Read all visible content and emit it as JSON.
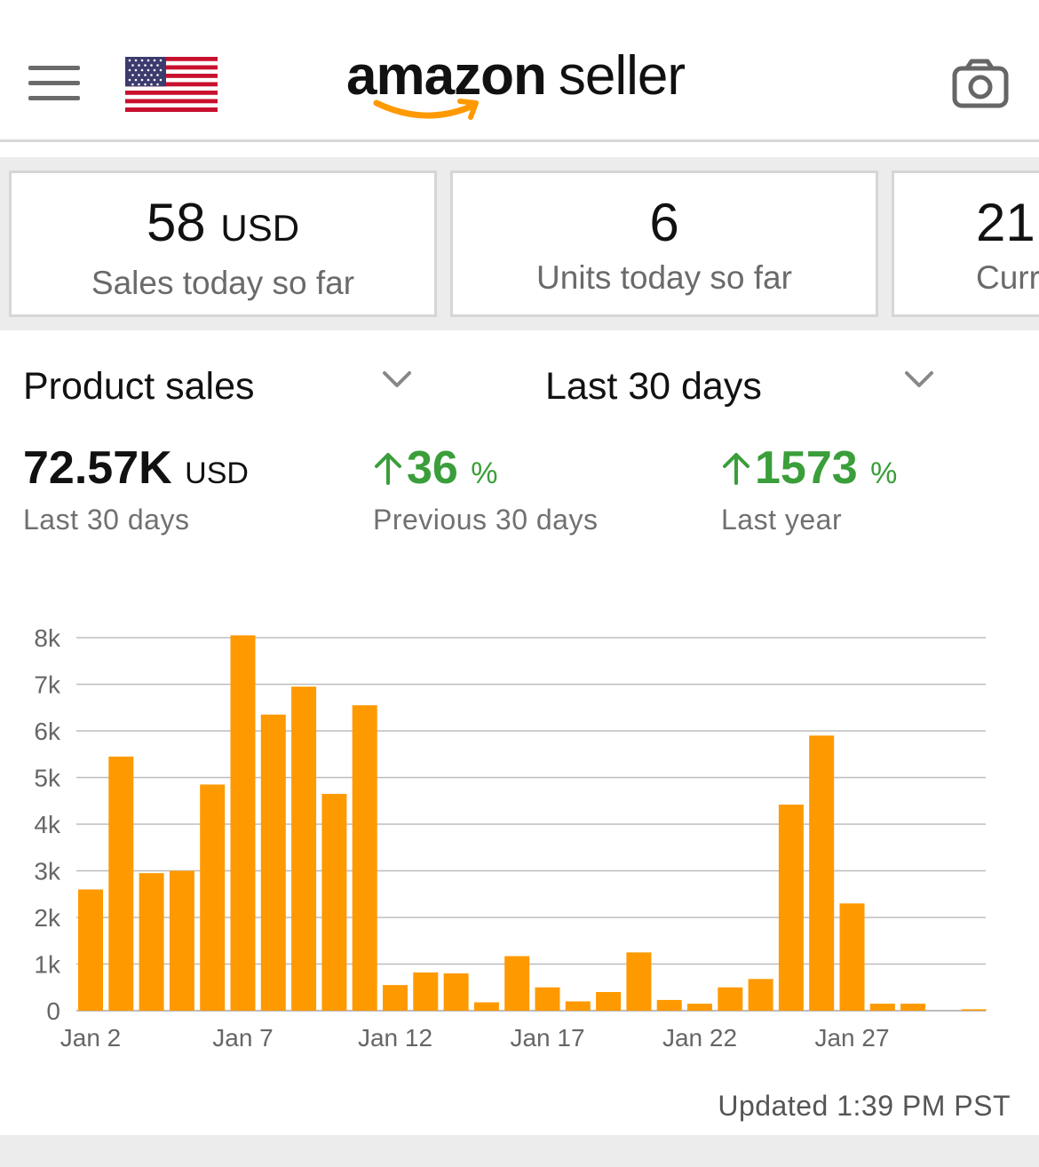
{
  "header": {
    "logo_bold": "amazon",
    "logo_light": "seller",
    "icons": {
      "menu": "hamburger-menu-icon",
      "flag": "us-flag-icon",
      "camera": "camera-icon"
    }
  },
  "kpis": [
    {
      "value": "58",
      "unit": "USD",
      "label": "Sales today so far"
    },
    {
      "value": "6",
      "unit": "",
      "label": "Units today so far"
    },
    {
      "value": "21.",
      "unit": "",
      "label": "Curr"
    }
  ],
  "selectors": {
    "metric": "Product sales",
    "range": "Last 30 days"
  },
  "stats": {
    "total": {
      "value": "72.57K",
      "unit": "USD",
      "label": "Last 30 days"
    },
    "prev": {
      "value": "36",
      "unit": "%",
      "label": "Previous 30 days",
      "direction": "up"
    },
    "year": {
      "value": "1573",
      "unit": "%",
      "label": "Last year",
      "direction": "up"
    }
  },
  "colors": {
    "bar": "#ff9900",
    "positive": "#3a9e3a",
    "grid": "#bdbdbd",
    "axis_text": "#666666"
  },
  "chart_data": {
    "type": "bar",
    "title": "",
    "xlabel": "",
    "ylabel": "",
    "ylim": [
      0,
      8000
    ],
    "y_ticks": [
      "0",
      "1k",
      "2k",
      "3k",
      "4k",
      "5k",
      "6k",
      "7k",
      "8k"
    ],
    "x_tick_labels": [
      "Jan 2",
      "Jan 7",
      "Jan 12",
      "Jan 17",
      "Jan 22",
      "Jan 27"
    ],
    "categories": [
      "Jan 2",
      "Jan 3",
      "Jan 4",
      "Jan 5",
      "Jan 6",
      "Jan 7",
      "Jan 8",
      "Jan 9",
      "Jan 10",
      "Jan 11",
      "Jan 12",
      "Jan 13",
      "Jan 14",
      "Jan 15",
      "Jan 16",
      "Jan 17",
      "Jan 18",
      "Jan 19",
      "Jan 20",
      "Jan 21",
      "Jan 22",
      "Jan 23",
      "Jan 24",
      "Jan 25",
      "Jan 26",
      "Jan 27",
      "Jan 28",
      "Jan 29",
      "Jan 30",
      "Jan 31"
    ],
    "values": [
      2600,
      5450,
      2950,
      3000,
      4850,
      8050,
      6350,
      6950,
      4650,
      6550,
      550,
      820,
      800,
      180,
      1170,
      500,
      200,
      400,
      1250,
      230,
      150,
      500,
      680,
      4420,
      5900,
      2300,
      150,
      150,
      0,
      30
    ],
    "grid": true
  },
  "footer": {
    "updated": "Updated 1:39 PM PST"
  }
}
